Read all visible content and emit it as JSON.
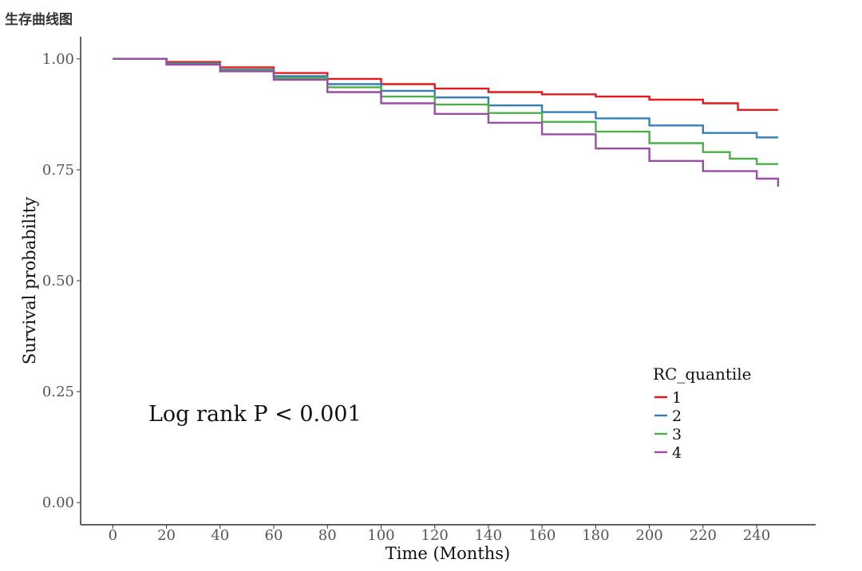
{
  "page_title": "生存曲线图",
  "chart_data": {
    "type": "line",
    "title": "",
    "xlabel": "Time (Months)",
    "ylabel": "Survival probability",
    "xlim": [
      -12,
      262
    ],
    "ylim": [
      -0.05,
      1.05
    ],
    "x_ticks": [
      0,
      20,
      40,
      60,
      80,
      100,
      120,
      140,
      160,
      180,
      200,
      220,
      240
    ],
    "y_ticks": [
      0.0,
      0.25,
      0.5,
      0.75,
      1.0
    ],
    "y_tick_labels": [
      "0.00",
      "0.25",
      "0.50",
      "0.75",
      "1.00"
    ],
    "grid": false,
    "legend": {
      "title": "RC_quantile",
      "position": "bottom-right"
    },
    "annotation": "Log rank P < 0.001",
    "series": [
      {
        "name": "1",
        "color": "#E41A1C",
        "x": [
          0,
          20,
          40,
          60,
          80,
          100,
          120,
          140,
          160,
          180,
          200,
          220,
          233,
          248
        ],
        "y": [
          1.0,
          0.993,
          0.981,
          0.968,
          0.955,
          0.943,
          0.933,
          0.925,
          0.92,
          0.915,
          0.908,
          0.9,
          0.885,
          0.885
        ]
      },
      {
        "name": "2",
        "color": "#377EB8",
        "x": [
          0,
          20,
          40,
          60,
          80,
          100,
          120,
          140,
          160,
          180,
          200,
          220,
          240,
          248
        ],
        "y": [
          1.0,
          0.99,
          0.976,
          0.961,
          0.943,
          0.928,
          0.913,
          0.895,
          0.88,
          0.866,
          0.85,
          0.833,
          0.823,
          0.823
        ]
      },
      {
        "name": "3",
        "color": "#4DAF4A",
        "x": [
          0,
          20,
          40,
          60,
          80,
          100,
          120,
          140,
          160,
          180,
          200,
          220,
          230,
          240,
          248
        ],
        "y": [
          1.0,
          0.988,
          0.974,
          0.957,
          0.936,
          0.915,
          0.897,
          0.878,
          0.858,
          0.836,
          0.81,
          0.79,
          0.775,
          0.763,
          0.763
        ]
      },
      {
        "name": "4",
        "color": "#984EA3",
        "x": [
          0,
          20,
          40,
          60,
          80,
          100,
          120,
          140,
          160,
          180,
          200,
          220,
          240,
          248
        ],
        "y": [
          1.0,
          0.987,
          0.972,
          0.953,
          0.925,
          0.9,
          0.876,
          0.856,
          0.83,
          0.798,
          0.77,
          0.747,
          0.73,
          0.712
        ]
      }
    ]
  }
}
